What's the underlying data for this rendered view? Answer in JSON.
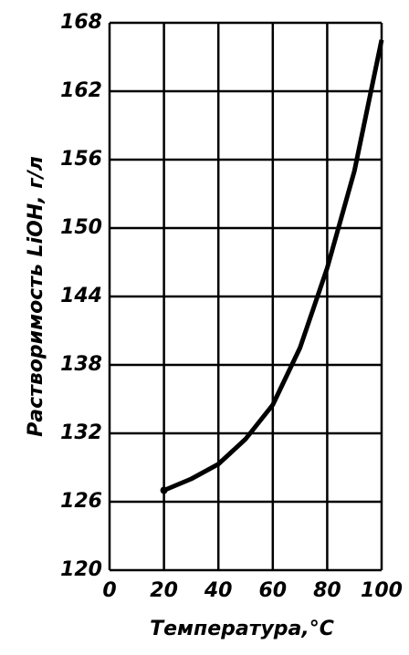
{
  "chart_data": {
    "type": "line",
    "x_label": "Температура,°C",
    "y_label": "Растворимость LiOH, г/л",
    "x": [
      20,
      30,
      40,
      50,
      60,
      70,
      80,
      90,
      100
    ],
    "series": [
      {
        "color": "#000000",
        "values": [
          127,
          128,
          129.3,
          131.5,
          134.5,
          139.5,
          146.5,
          155,
          166.5
        ]
      }
    ],
    "xlim": [
      0,
      100
    ],
    "xticks": [
      0,
      20,
      40,
      60,
      80,
      100
    ],
    "ylim": [
      120,
      168
    ],
    "yticks": [
      120,
      126,
      132,
      138,
      144,
      150,
      156,
      162,
      168
    ],
    "grid": true
  }
}
